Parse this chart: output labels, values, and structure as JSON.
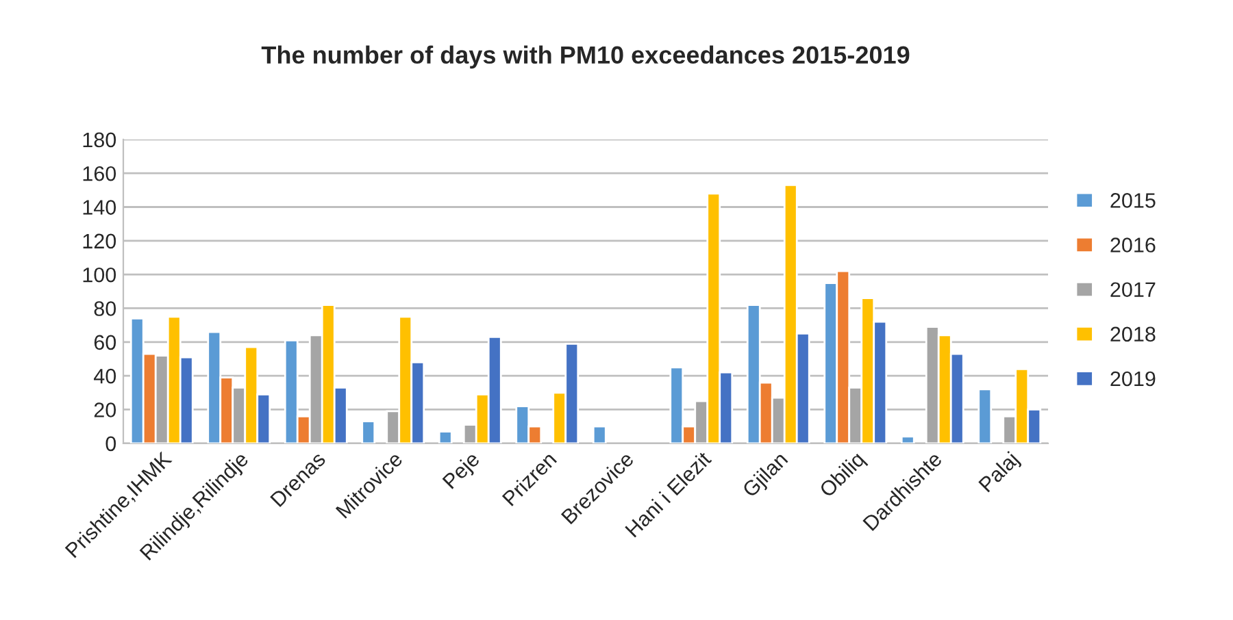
{
  "chart_data": {
    "type": "bar",
    "title": "The number of days with PM10 exceedances 2015-2019",
    "categories": [
      "Prishtine,IHMK",
      "Rilindje,Rilindje",
      "Drenas",
      "Mitrovice",
      "Peje",
      "Prizren",
      "Brezovice",
      "Hani i Elezit",
      "Gjilan",
      "Obiliq",
      "Dardhishte",
      "Palaj"
    ],
    "series": [
      {
        "name": "2015",
        "color": "#5b9bd5",
        "values": [
          74,
          66,
          61,
          13,
          7,
          22,
          10,
          45,
          82,
          95,
          4,
          32
        ]
      },
      {
        "name": "2016",
        "color": "#ed7d31",
        "values": [
          53,
          39,
          16,
          null,
          null,
          10,
          null,
          10,
          36,
          102,
          null,
          null
        ]
      },
      {
        "name": "2017",
        "color": "#a5a5a5",
        "values": [
          52,
          33,
          64,
          19,
          11,
          null,
          null,
          25,
          27,
          33,
          69,
          16
        ]
      },
      {
        "name": "2018",
        "color": "#ffc000",
        "values": [
          75,
          57,
          82,
          75,
          29,
          30,
          null,
          148,
          153,
          86,
          64,
          44
        ]
      },
      {
        "name": "2019",
        "color": "#4472c4",
        "values": [
          51,
          29,
          33,
          48,
          63,
          59,
          null,
          42,
          65,
          72,
          53,
          20
        ]
      }
    ],
    "ylim": [
      0,
      180
    ],
    "yticks": [
      0,
      20,
      40,
      60,
      80,
      100,
      120,
      140,
      160,
      180
    ],
    "grid": "y",
    "legend": "right"
  }
}
